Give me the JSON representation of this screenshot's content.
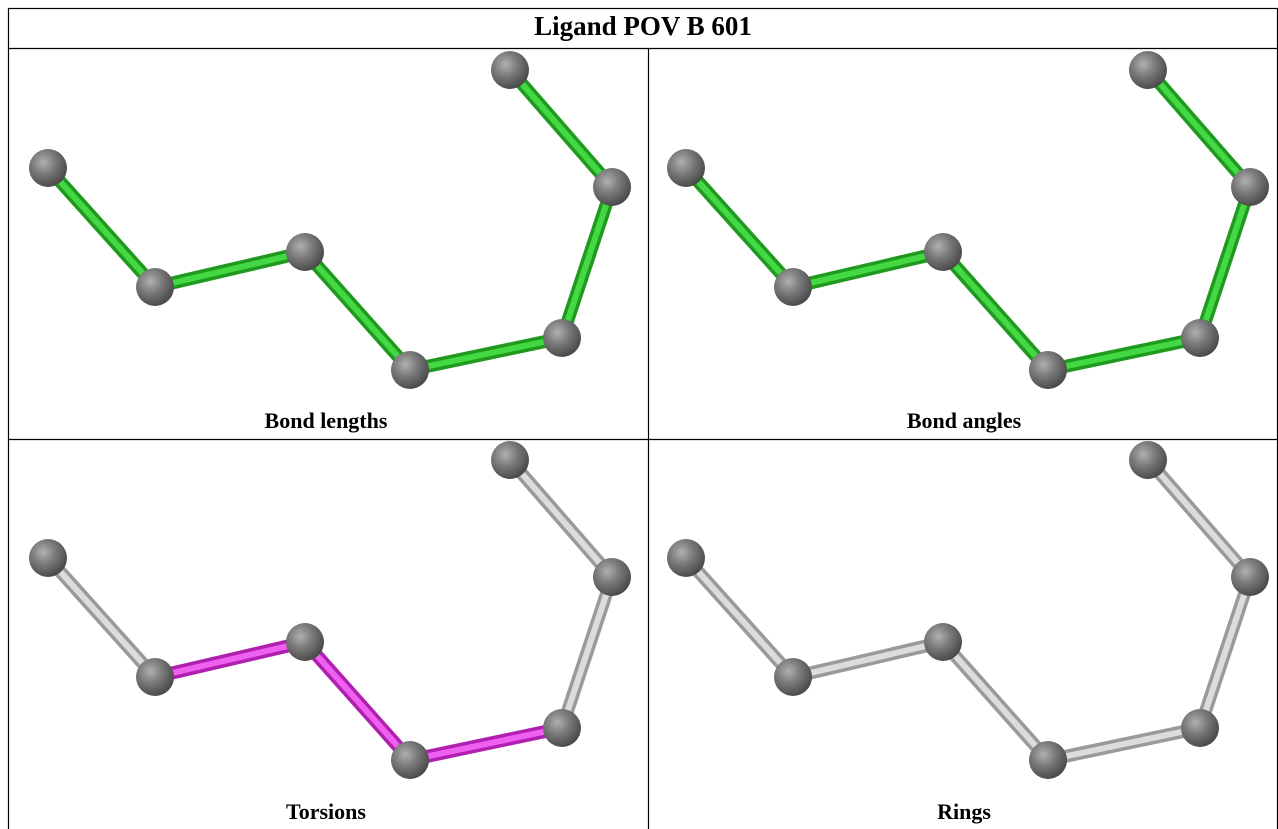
{
  "title": "Ligand POV B 601",
  "panels": [
    {
      "caption": "Bond lengths"
    },
    {
      "caption": "Bond angles"
    },
    {
      "caption": "Torsions"
    },
    {
      "caption": "Rings"
    }
  ]
}
